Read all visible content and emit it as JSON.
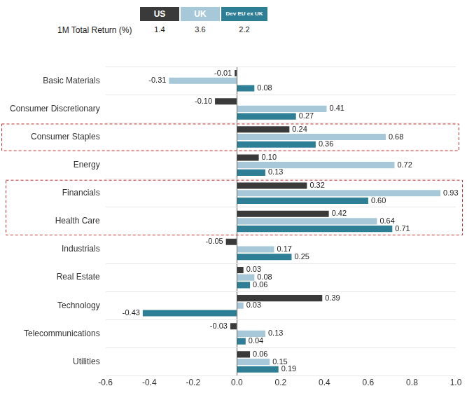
{
  "chart_data": {
    "type": "bar",
    "orientation": "horizontal",
    "categories": [
      "Basic Materials",
      "Consumer Discretionary",
      "Consumer Staples",
      "Energy",
      "Financials",
      "Health Care",
      "Industrials",
      "Real Estate",
      "Technology",
      "Telecommunications",
      "Utilities"
    ],
    "series": [
      {
        "name": "US",
        "color": "#3a3a3a",
        "total_return": 1.4,
        "values": [
          -0.01,
          -0.1,
          0.24,
          0.1,
          0.32,
          0.42,
          -0.05,
          0.03,
          0.39,
          -0.03,
          0.06
        ],
        "value_labels": [
          "-0.01",
          "-0.10",
          "0.24",
          "0.10",
          "0.32",
          "0.42",
          "-0.05",
          "0.03",
          "0.39",
          "-0.03",
          "0.06"
        ]
      },
      {
        "name": "UK",
        "color": "#a7c8d8",
        "total_return": 3.6,
        "values": [
          -0.31,
          0.41,
          0.68,
          0.72,
          0.93,
          0.64,
          0.17,
          0.08,
          0.03,
          0.13,
          0.15
        ],
        "value_labels": [
          "-0.31",
          "0.41",
          "0.68",
          "0.72",
          "0.93",
          "0.64",
          "0.17",
          "0.08",
          "0.03",
          "0.13",
          "0.15"
        ]
      },
      {
        "name": "Dev EU ex UK",
        "color": "#2e7f96",
        "total_return": 2.2,
        "values": [
          0.08,
          0.27,
          0.36,
          0.13,
          0.6,
          0.71,
          0.25,
          0.06,
          -0.43,
          0.04,
          0.19
        ],
        "value_labels": [
          "0.08",
          "0.27",
          "0.36",
          "0.13",
          "0.60",
          "0.71",
          "0.25",
          "0.06",
          "-0.43",
          "0.04",
          "0.19"
        ]
      }
    ],
    "total_return_label": "1M Total Return (%)",
    "xlim": [
      -0.6,
      1
    ],
    "xticks": [
      -0.6,
      -0.4,
      -0.2,
      {
        "value": 0,
        "label": "0.0"
      },
      0.2,
      0.4,
      0.6,
      0.8,
      {
        "value": 1,
        "label": "1.0"
      }
    ],
    "grid": true,
    "legend": "top",
    "data_labels": true
  }
}
